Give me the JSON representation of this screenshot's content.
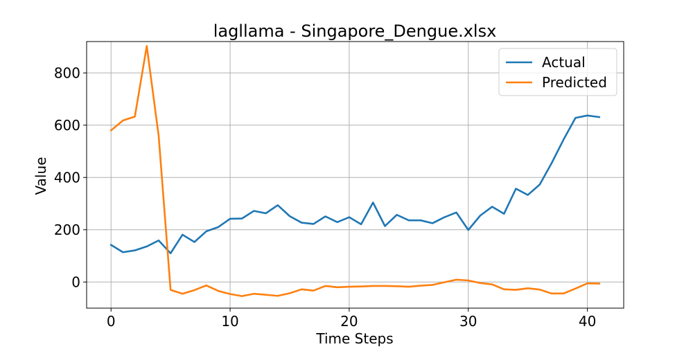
{
  "chart_data": {
    "type": "line",
    "title": "lagllama - Singapore_Dengue.xlsx",
    "xlabel": "Time Steps",
    "ylabel": "Value",
    "xlim": [
      -2.05,
      43.05
    ],
    "ylim": [
      -100,
      920
    ],
    "xticks": [
      0,
      10,
      20,
      30,
      40
    ],
    "yticks": [
      0,
      200,
      400,
      600,
      800
    ],
    "grid": true,
    "legend_position": "top-right",
    "x": [
      0,
      1,
      2,
      3,
      4,
      5,
      6,
      7,
      8,
      9,
      10,
      11,
      12,
      13,
      14,
      15,
      16,
      17,
      18,
      19,
      20,
      21,
      22,
      23,
      24,
      25,
      26,
      27,
      28,
      29,
      30,
      31,
      32,
      33,
      34,
      35,
      36,
      37,
      38,
      39,
      40,
      41
    ],
    "series": [
      {
        "name": "Actual",
        "color": "#1f77b4",
        "values": [
          142,
          114,
          121,
          136,
          159,
          110,
          181,
          153,
          194,
          210,
          242,
          243,
          272,
          263,
          294,
          252,
          227,
          222,
          251,
          229,
          248,
          221,
          304,
          214,
          257,
          236,
          236,
          225,
          248,
          266,
          199,
          254,
          288,
          261,
          357,
          333,
          373,
          455,
          545,
          628,
          637,
          631
        ]
      },
      {
        "name": "Predicted",
        "color": "#ff7f0e",
        "values": [
          580,
          618,
          633,
          903,
          559,
          -30,
          -45,
          -31,
          -13,
          -34,
          -46,
          -54,
          -45,
          -49,
          -53,
          -43,
          -28,
          -33,
          -15,
          -20,
          -18,
          -17,
          -15,
          -15,
          -16,
          -18,
          -14,
          -11,
          -1,
          9,
          6,
          -4,
          -9,
          -28,
          -30,
          -24,
          -29,
          -44,
          -44,
          -25,
          -5,
          -6
        ]
      }
    ]
  }
}
